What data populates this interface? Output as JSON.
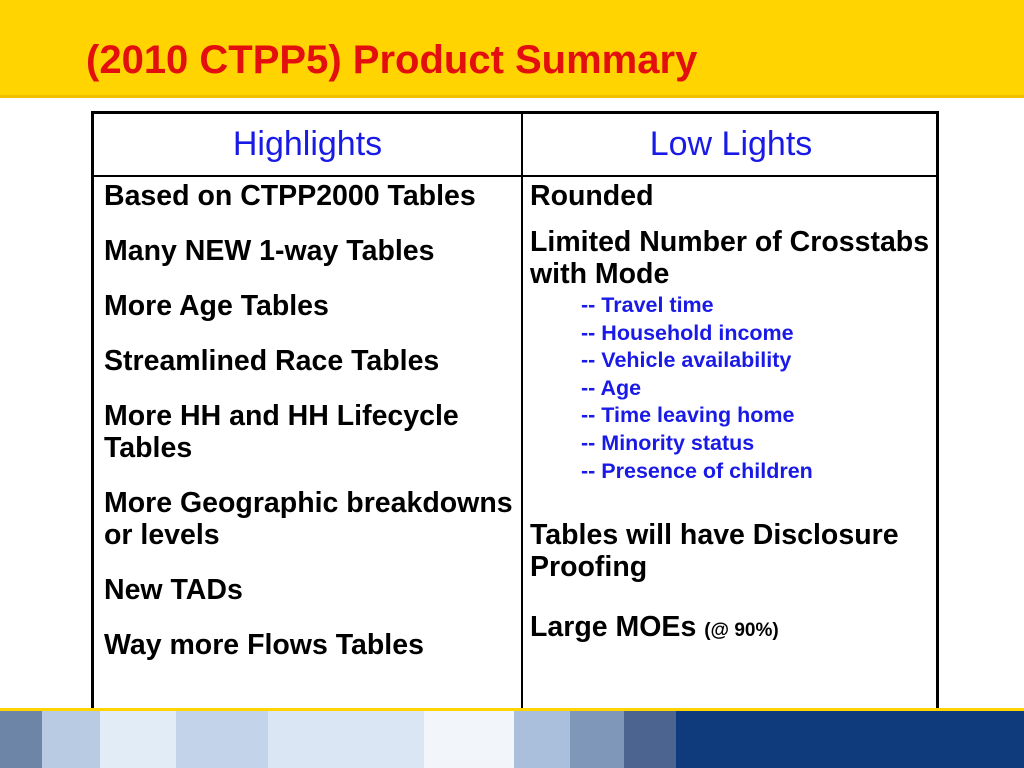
{
  "slide": {
    "title": "(2010 CTPP5) Product Summary",
    "colors": {
      "title_band": "#ffd400",
      "title_text": "#e30e0e",
      "header_text": "#1a1ae6",
      "body_text": "#000000",
      "sub_text": "#1a1ae6"
    }
  },
  "table": {
    "headers": [
      "Highlights",
      "Low Lights"
    ],
    "highlights": [
      "Based on CTPP2000 Tables",
      "Many NEW 1-way Tables",
      "More Age Tables",
      "Streamlined Race Tables",
      "More HH and HH Lifecycle Tables",
      "More Geographic breakdowns or levels",
      "New TADs",
      "Way more Flows Tables"
    ],
    "lowlights": {
      "rounded": "Rounded",
      "crosstabs": "Limited Number of Crosstabs with Mode",
      "crosstab_items": [
        "-- Travel time",
        "-- Household income",
        "-- Vehicle availability",
        "-- Age",
        "-- Time leaving home",
        "-- Minority status",
        "-- Presence of children"
      ],
      "disclosure": "Tables will have Disclosure Proofing",
      "moe": "Large MOEs",
      "moe_note": "(@ 90%)"
    }
  }
}
